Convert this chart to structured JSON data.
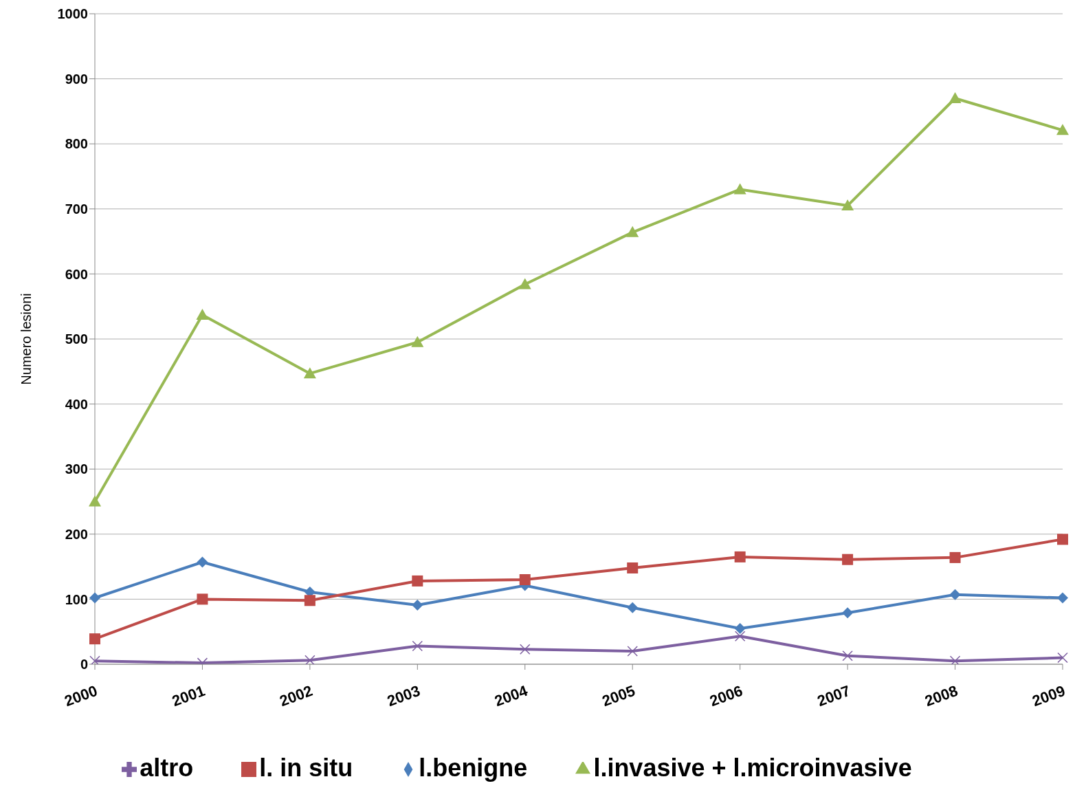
{
  "chart_data": {
    "type": "line",
    "ylabel": "Numero lesioni",
    "categories": [
      "2000",
      "2001",
      "2002",
      "2003",
      "2004",
      "2005",
      "2006",
      "2007",
      "2008",
      "2009"
    ],
    "ylim": [
      0,
      1000
    ],
    "yticks": [
      0,
      100,
      200,
      300,
      400,
      500,
      600,
      700,
      800,
      900,
      1000
    ],
    "grid": "y",
    "legend": "bottom",
    "series": [
      {
        "name": "l.benigne",
        "color": "#4a7ebb",
        "marker": "diamond",
        "values": [
          102,
          157,
          111,
          91,
          121,
          87,
          55,
          79,
          107,
          102
        ]
      },
      {
        "name": "l. in situ",
        "color": "#be4b48",
        "marker": "square",
        "values": [
          39,
          100,
          98,
          128,
          130,
          148,
          165,
          161,
          164,
          192
        ]
      },
      {
        "name": "l.invasive + l.microinvasive",
        "color": "#98b954",
        "marker": "triangle",
        "values": [
          250,
          537,
          447,
          495,
          584,
          664,
          730,
          705,
          870,
          821
        ]
      },
      {
        "name": "altro",
        "color": "#7d5fa0",
        "marker": "cross",
        "values": [
          5,
          2,
          6,
          28,
          23,
          20,
          43,
          13,
          5,
          10
        ]
      }
    ]
  }
}
